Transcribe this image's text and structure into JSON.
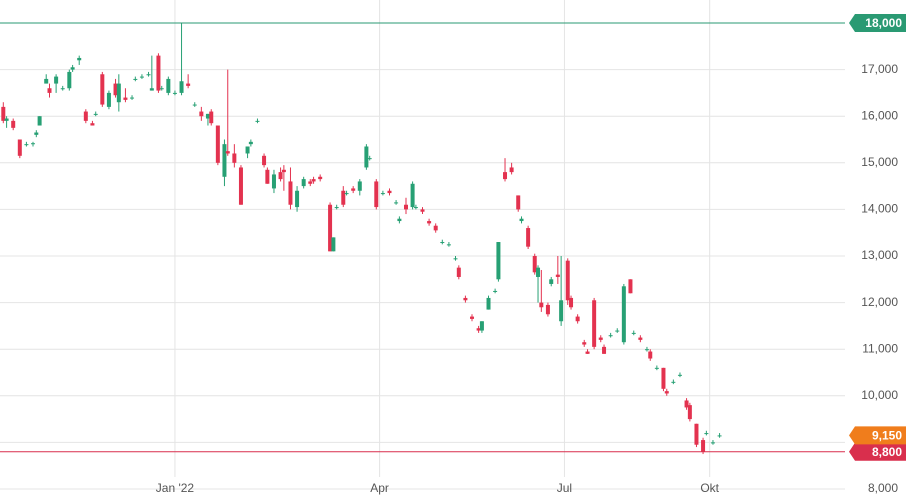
{
  "chart_data": {
    "type": "candlestick",
    "x": [
      -52,
      -51,
      -49,
      -47,
      -45,
      -43,
      -42,
      -41,
      -39,
      -38,
      -36,
      -34,
      -32,
      -31,
      -29,
      -27,
      -25,
      -24,
      -22,
      -20,
      -18,
      -17,
      -15,
      -13,
      -12,
      -10,
      -8,
      -7,
      -5,
      -4,
      -2,
      0,
      2,
      4,
      6,
      8,
      10,
      11,
      13,
      15,
      16,
      18,
      20,
      22,
      23,
      25,
      27,
      28,
      30,
      32,
      33,
      35,
      37,
      39,
      41,
      42,
      44,
      47,
      48,
      49,
      51,
      52,
      54,
      56,
      58,
      59,
      61,
      63,
      65,
      67,
      68,
      70,
      72,
      73,
      75,
      77,
      79,
      81,
      83,
      85,
      86,
      88,
      90,
      92,
      93,
      95,
      97,
      98,
      100,
      102,
      104,
      105,
      107,
      109,
      110,
      111,
      113,
      114,
      116,
      117,
      119,
      120,
      122,
      124,
      125,
      127,
      129,
      130,
      132,
      134,
      136,
      138,
      139,
      141,
      143,
      144,
      146,
      148,
      149,
      151,
      153,
      155,
      156,
      158,
      160,
      161,
      163,
      165
    ],
    "open": [
      16200,
      15900,
      15900,
      15500,
      15400,
      15400,
      15600,
      15800,
      16700,
      16600,
      16700,
      16600,
      16600,
      17000,
      17200,
      16100,
      15850,
      16050,
      16900,
      16200,
      16700,
      16300,
      16400,
      16400,
      16800,
      16850,
      16900,
      16550,
      17300,
      16600,
      16500,
      16500,
      16500,
      16700,
      16250,
      16100,
      15950,
      16100,
      15800,
      14700,
      15250,
      15200,
      14900,
      15200,
      15400,
      15900,
      15150,
      14850,
      14450,
      14800,
      14850,
      14600,
      14050,
      14500,
      14600,
      14650,
      14700,
      14100,
      13100,
      14050,
      14400,
      14350,
      14450,
      14400,
      14900,
      15100,
      14600,
      14350,
      14400,
      14150,
      13750,
      14100,
      14050,
      14050,
      14000,
      13750,
      13650,
      13300,
      13250,
      12950,
      12750,
      12100,
      11700,
      11450,
      11400,
      11850,
      12250,
      12500,
      14800,
      14900,
      14300,
      13750,
      13600,
      13000,
      12550,
      12000,
      11950,
      12400,
      12600,
      11600,
      12900,
      12100,
      11700,
      11150,
      10950,
      12050,
      11250,
      11050,
      11300,
      11400,
      11150,
      12500,
      11350,
      11250,
      11000,
      10950,
      10600,
      10600,
      10100,
      10300,
      10450,
      9900,
      9800,
      9400,
      9050,
      9200,
      9000,
      9150
    ],
    "high": [
      16300,
      16000,
      15950,
      15500,
      15450,
      15450,
      15700,
      16000,
      16900,
      16700,
      16900,
      16650,
      17000,
      17100,
      17300,
      16150,
      15900,
      16100,
      16950,
      16550,
      16800,
      16900,
      16600,
      16450,
      16850,
      16900,
      16950,
      17300,
      17350,
      16650,
      16850,
      16550,
      18000,
      16900,
      16300,
      16200,
      16050,
      16150,
      15800,
      15500,
      17000,
      15400,
      14950,
      15350,
      15500,
      15950,
      15200,
      14900,
      14850,
      14900,
      14950,
      14900,
      14500,
      14700,
      14650,
      14700,
      14750,
      14150,
      13400,
      14100,
      14500,
      14400,
      14500,
      14650,
      15400,
      15150,
      14650,
      14400,
      14450,
      14200,
      13850,
      14250,
      14600,
      14100,
      14050,
      13800,
      13700,
      13350,
      13300,
      13000,
      12800,
      12150,
      11750,
      11500,
      11600,
      12150,
      12300,
      13300,
      15100,
      15000,
      14300,
      13850,
      13650,
      13050,
      12800,
      12700,
      12000,
      12550,
      13000,
      13000,
      12950,
      12150,
      11750,
      11200,
      11000,
      12100,
      11300,
      11100,
      11350,
      11450,
      12400,
      12500,
      11400,
      11300,
      11050,
      11000,
      10650,
      10600,
      10150,
      10350,
      10500,
      9950,
      9850,
      9400,
      9100,
      9250,
      9050,
      9200
    ],
    "low": [
      15850,
      15750,
      15700,
      15100,
      15350,
      15350,
      15550,
      15800,
      16700,
      16400,
      16500,
      16550,
      16550,
      16950,
      17100,
      15850,
      15800,
      16000,
      16200,
      16150,
      16400,
      16100,
      16300,
      16350,
      16750,
      16800,
      16850,
      16550,
      16500,
      16550,
      16450,
      16450,
      16450,
      16600,
      16200,
      15900,
      15800,
      15800,
      14950,
      14500,
      15150,
      14900,
      14100,
      15100,
      15350,
      15850,
      14900,
      14550,
      14350,
      14600,
      14400,
      14000,
      13950,
      14450,
      14500,
      14550,
      14600,
      13100,
      13100,
      14000,
      14050,
      14300,
      14350,
      14300,
      14850,
      15050,
      14000,
      14300,
      14300,
      14100,
      13700,
      13900,
      14000,
      14000,
      13900,
      13650,
      13500,
      13250,
      13200,
      12900,
      12500,
      12000,
      11600,
      11350,
      11350,
      11850,
      12200,
      12450,
      14600,
      14750,
      13950,
      13700,
      13150,
      12600,
      12000,
      11800,
      11700,
      12350,
      12400,
      11500,
      11950,
      11850,
      11550,
      11050,
      10900,
      11000,
      11150,
      10900,
      11250,
      11350,
      11100,
      12200,
      11300,
      11150,
      10950,
      10750,
      10550,
      10100,
      10000,
      10250,
      10400,
      9700,
      9450,
      8900,
      8750,
      9150,
      8950,
      9100
    ],
    "close": [
      15900,
      15950,
      15750,
      15150,
      15400,
      15420,
      15650,
      16000,
      16800,
      16500,
      16850,
      16600,
      16950,
      17050,
      17250,
      15900,
      15800,
      16050,
      16250,
      16500,
      16450,
      16700,
      16350,
      16400,
      16800,
      16850,
      16900,
      16600,
      16550,
      16600,
      16800,
      16500,
      16750,
      16650,
      16250,
      16000,
      16050,
      15850,
      15000,
      15400,
      15200,
      15000,
      14100,
      15350,
      15450,
      15900,
      14950,
      14550,
      14750,
      14650,
      14800,
      14100,
      14400,
      14650,
      14550,
      14600,
      14650,
      13100,
      13400,
      14050,
      14100,
      14350,
      14400,
      14600,
      15350,
      15100,
      14050,
      14350,
      14350,
      14150,
      13800,
      14000,
      14550,
      14050,
      13950,
      13700,
      13550,
      13300,
      13250,
      12950,
      12550,
      12050,
      11650,
      11400,
      11600,
      12100,
      12250,
      13300,
      14650,
      14800,
      14000,
      13800,
      13200,
      12650,
      12750,
      11900,
      11750,
      12500,
      12550,
      12050,
      12050,
      11900,
      11600,
      11100,
      10900,
      11050,
      11200,
      10900,
      11300,
      11400,
      12350,
      12200,
      11350,
      11200,
      11000,
      10800,
      10600,
      10150,
      10050,
      10300,
      10450,
      9750,
      9500,
      8950,
      8800,
      9200,
      9000,
      9150
    ],
    "up_color": "#27a074",
    "down_color": "#e3324f",
    "xlim": [
      -53,
      203
    ],
    "xticks": [
      {
        "value": 0,
        "label": "Jan '22"
      },
      {
        "value": 62,
        "label": "Apr"
      },
      {
        "value": 118,
        "label": "Jul"
      },
      {
        "value": 162,
        "label": "Okt"
      }
    ],
    "ylim": [
      8000,
      18000
    ],
    "yticks": [
      {
        "value": 8000,
        "label": "8,000"
      },
      {
        "value": 9000,
        "label": "9,000"
      },
      {
        "value": 10000,
        "label": "10,000"
      },
      {
        "value": 11000,
        "label": "11,000"
      },
      {
        "value": 12000,
        "label": "12,000"
      },
      {
        "value": 13000,
        "label": "13,000"
      },
      {
        "value": 14000,
        "label": "14,000"
      },
      {
        "value": 15000,
        "label": "15,000"
      },
      {
        "value": 16000,
        "label": "16,000"
      },
      {
        "value": 17000,
        "label": "17,000"
      },
      {
        "value": 18000,
        "label": "18,000"
      }
    ],
    "grid": true,
    "price_lines": [
      {
        "value": 18000,
        "label": "18,000",
        "color": "#2a9a73"
      },
      {
        "value": 8800,
        "label": "8,800",
        "color": "#d92f4d"
      }
    ],
    "last_price": {
      "value": 9150,
      "label": "9,150",
      "color": "#f07d1c"
    }
  }
}
